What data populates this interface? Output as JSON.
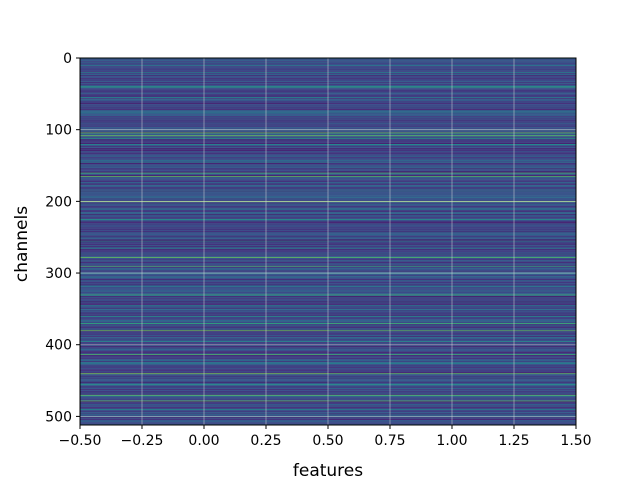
{
  "chart_data": {
    "type": "heatmap",
    "title": "",
    "xlabel": "features",
    "ylabel": "channels",
    "xlim": [
      -0.5,
      1.5
    ],
    "ylim": [
      512,
      0
    ],
    "rows": 512,
    "columns": 2,
    "colormap": "viridis",
    "grid": true,
    "xticks": [
      -0.5,
      -0.25,
      0.0,
      0.25,
      0.5,
      0.75,
      1.0,
      1.25,
      1.5
    ],
    "xtick_labels": [
      "−0.50",
      "−0.25",
      "0.00",
      "0.25",
      "0.50",
      "0.75",
      "1.00",
      "1.25",
      "1.50"
    ],
    "yticks": [
      0,
      100,
      200,
      300,
      400,
      500
    ],
    "ytick_labels": [
      "0",
      "100",
      "200",
      "300",
      "400",
      "500"
    ],
    "row_profile_note": "values estimated from color; each horizontal stripe is one channel, both feature columns similar",
    "bright_channels": [
      40,
      104,
      108,
      160,
      165,
      200,
      278,
      290,
      330,
      370,
      380,
      413,
      440,
      470,
      478
    ],
    "mid_channels": [
      10,
      20,
      55,
      75,
      100,
      112,
      120,
      145,
      185,
      225,
      255,
      265,
      300,
      318,
      345,
      360,
      395,
      425,
      455,
      490,
      500
    ]
  }
}
